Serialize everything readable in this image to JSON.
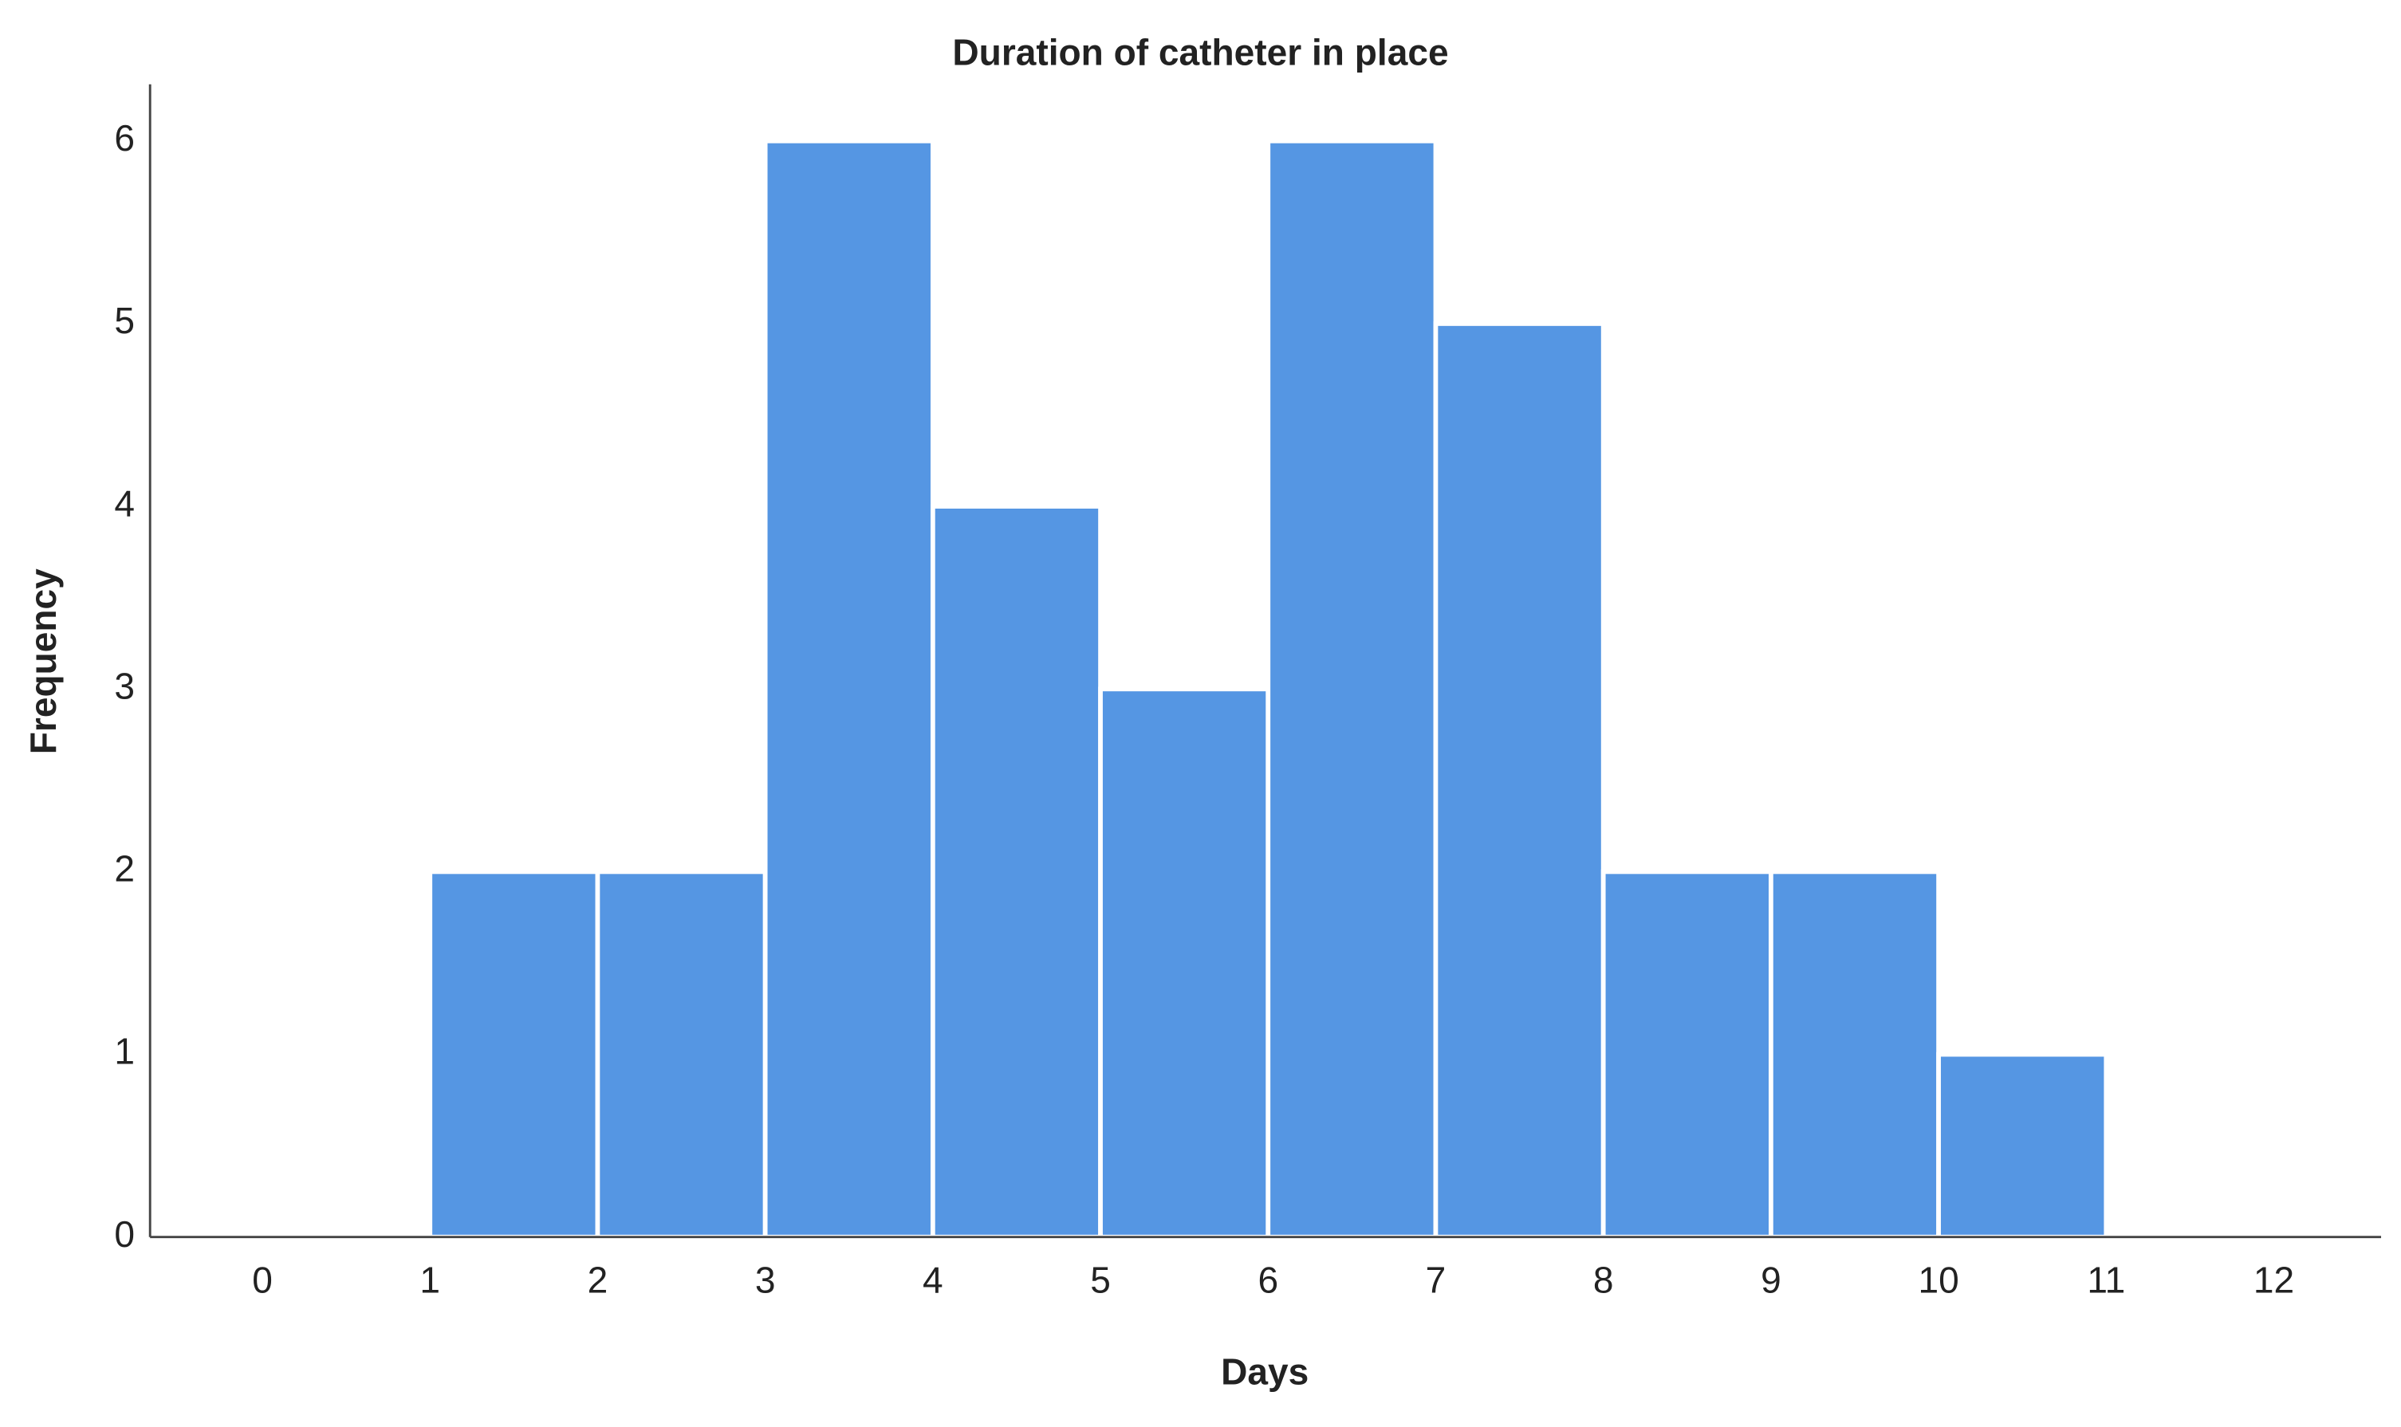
{
  "chart_data": {
    "type": "histogram",
    "title": "Duration of catheter in place",
    "xlabel": "Days",
    "ylabel": "Frequency",
    "bins": [
      1,
      2,
      3,
      4,
      5,
      6,
      7,
      8,
      9,
      10,
      11
    ],
    "values": [
      2,
      2,
      6,
      4,
      3,
      6,
      5,
      2,
      2,
      1
    ],
    "color": "#5596e3",
    "xlim": [
      -0.67,
      12.64
    ],
    "xticks": [
      0,
      1,
      2,
      3,
      4,
      5,
      6,
      7,
      8,
      9,
      10,
      11,
      12
    ],
    "ylim": [
      0,
      6.31
    ],
    "yticks": [
      0,
      1,
      2,
      3,
      4,
      5,
      6
    ],
    "grid": false
  }
}
